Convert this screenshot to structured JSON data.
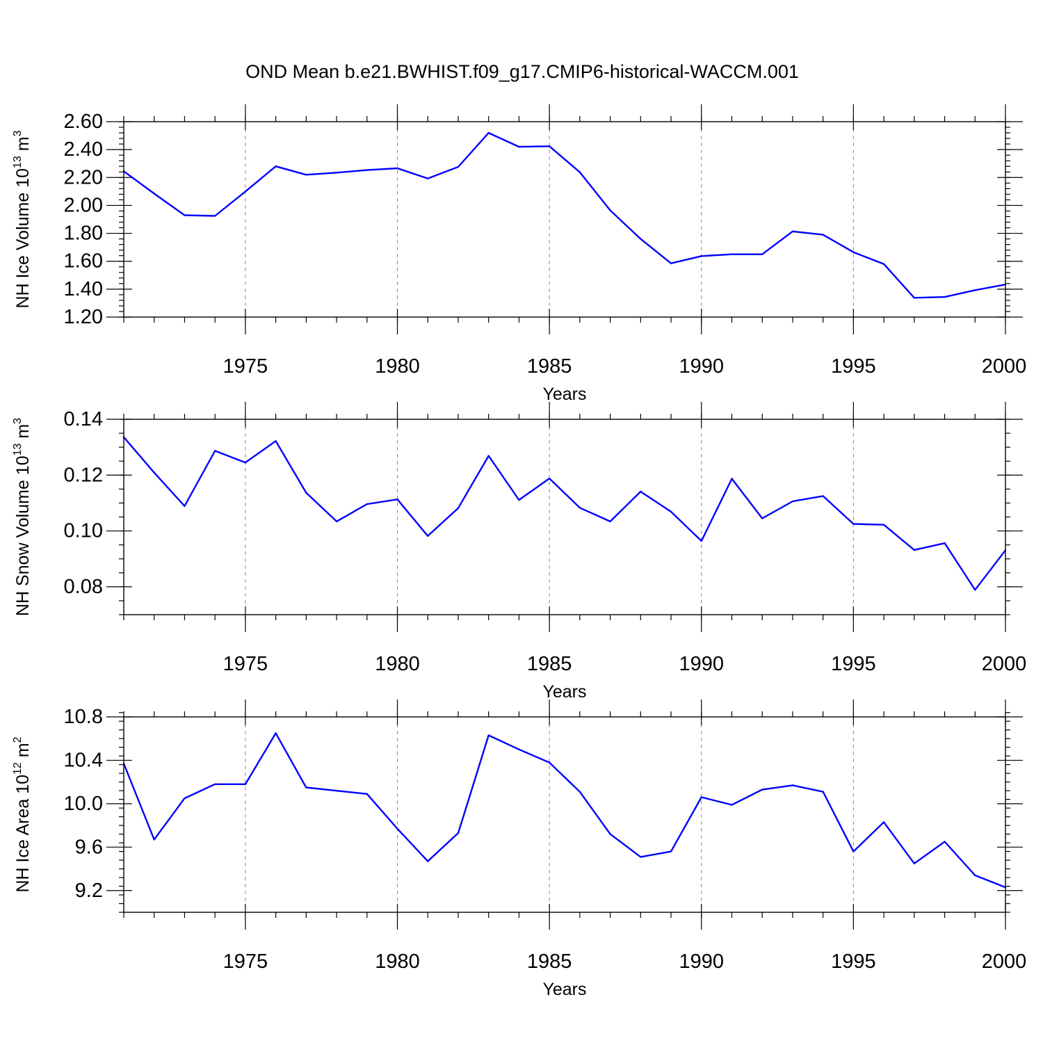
{
  "title": "OND Mean b.e21.BWHIST.f09_g17.CMIP6-historical-WACCM.001",
  "colors": {
    "line": "#0000ff",
    "grid": "#888888"
  },
  "chart_data": [
    {
      "type": "line",
      "xlabel": "Years",
      "ylabel": {
        "base": "NH Ice Volume 10",
        "exp": "13",
        "unit": " m",
        "unit_exp": "3"
      },
      "xlim": [
        1971,
        2000
      ],
      "ylim": [
        1.2,
        2.6
      ],
      "xticks": [
        1975,
        1980,
        1985,
        1990,
        1995,
        2000
      ],
      "yticks": [
        1.2,
        1.4,
        1.6,
        1.8,
        2.0,
        2.2,
        2.4,
        2.6
      ],
      "ytick_labels": [
        "1.20",
        "1.40",
        "1.60",
        "1.80",
        "2.00",
        "2.20",
        "2.40",
        "2.60"
      ],
      "y_minor_step": 0.04,
      "grid": "dashed vertical at major x ticks",
      "x": [
        1971,
        1972,
        1973,
        1974,
        1975,
        1976,
        1977,
        1978,
        1979,
        1980,
        1981,
        1982,
        1983,
        1984,
        1985,
        1986,
        1987,
        1988,
        1989,
        1990,
        1991,
        1992,
        1993,
        1994,
        1995,
        1996,
        1997,
        1998,
        1999,
        2000
      ],
      "y": [
        2.245,
        2.085,
        1.93,
        1.925,
        2.1,
        2.28,
        2.22,
        2.235,
        2.253,
        2.266,
        2.193,
        2.276,
        2.52,
        2.42,
        2.424,
        2.238,
        1.965,
        1.76,
        1.585,
        1.637,
        1.65,
        1.65,
        1.814,
        1.79,
        1.665,
        1.58,
        1.338,
        1.344,
        1.393,
        1.433
      ]
    },
    {
      "type": "line",
      "xlabel": "Years",
      "ylabel": {
        "base": "NH Snow Volume 10",
        "exp": "13",
        "unit": " m",
        "unit_exp": "3"
      },
      "xlim": [
        1971,
        2000
      ],
      "ylim": [
        0.07,
        0.14
      ],
      "xticks": [
        1975,
        1980,
        1985,
        1990,
        1995,
        2000
      ],
      "yticks": [
        0.08,
        0.1,
        0.12,
        0.14
      ],
      "ytick_labels": [
        "0.08",
        "0.10",
        "0.12",
        "0.14"
      ],
      "y_minor_step": 0.005,
      "grid": "dashed vertical at major x ticks",
      "x": [
        1971,
        1972,
        1973,
        1974,
        1975,
        1976,
        1977,
        1978,
        1979,
        1980,
        1981,
        1982,
        1983,
        1984,
        1985,
        1986,
        1987,
        1988,
        1989,
        1990,
        1991,
        1992,
        1993,
        1994,
        1995,
        1996,
        1997,
        1998,
        1999,
        2000
      ],
      "y": [
        0.1336,
        0.1209,
        0.1089,
        0.1287,
        0.1245,
        0.1322,
        0.1137,
        0.1034,
        0.1096,
        0.1113,
        0.0982,
        0.1082,
        0.1269,
        0.1111,
        0.1188,
        0.1083,
        0.1034,
        0.1141,
        0.1069,
        0.0964,
        0.1187,
        0.1045,
        0.1106,
        0.1125,
        0.1025,
        0.1022,
        0.0932,
        0.0956,
        0.0789,
        0.0931
      ]
    },
    {
      "type": "line",
      "xlabel": "Years",
      "ylabel": {
        "base": "NH Ice Area 10",
        "exp": "12",
        "unit": " m",
        "unit_exp": "2"
      },
      "xlim": [
        1971,
        2000
      ],
      "ylim": [
        9.0,
        10.8
      ],
      "xticks": [
        1975,
        1980,
        1985,
        1990,
        1995,
        2000
      ],
      "yticks": [
        9.2,
        9.6,
        10.0,
        10.4,
        10.8
      ],
      "ytick_labels": [
        "9.2",
        "9.6",
        "10.0",
        "10.4",
        "10.8"
      ],
      "y_minor_step": 0.08,
      "grid": "dashed vertical at major x ticks",
      "x": [
        1971,
        1972,
        1973,
        1974,
        1975,
        1976,
        1977,
        1978,
        1979,
        1980,
        1981,
        1982,
        1983,
        1984,
        1985,
        1986,
        1987,
        1988,
        1989,
        1990,
        1991,
        1992,
        1993,
        1994,
        1995,
        1996,
        1997,
        1998,
        1999,
        2000
      ],
      "y": [
        10.37,
        9.67,
        10.05,
        10.18,
        10.18,
        10.65,
        10.15,
        10.12,
        10.09,
        9.77,
        9.47,
        9.73,
        10.63,
        10.5,
        10.38,
        10.11,
        9.72,
        9.51,
        9.56,
        10.06,
        9.99,
        10.13,
        10.17,
        10.11,
        9.56,
        9.83,
        9.45,
        9.65,
        9.34,
        9.23
      ]
    }
  ]
}
